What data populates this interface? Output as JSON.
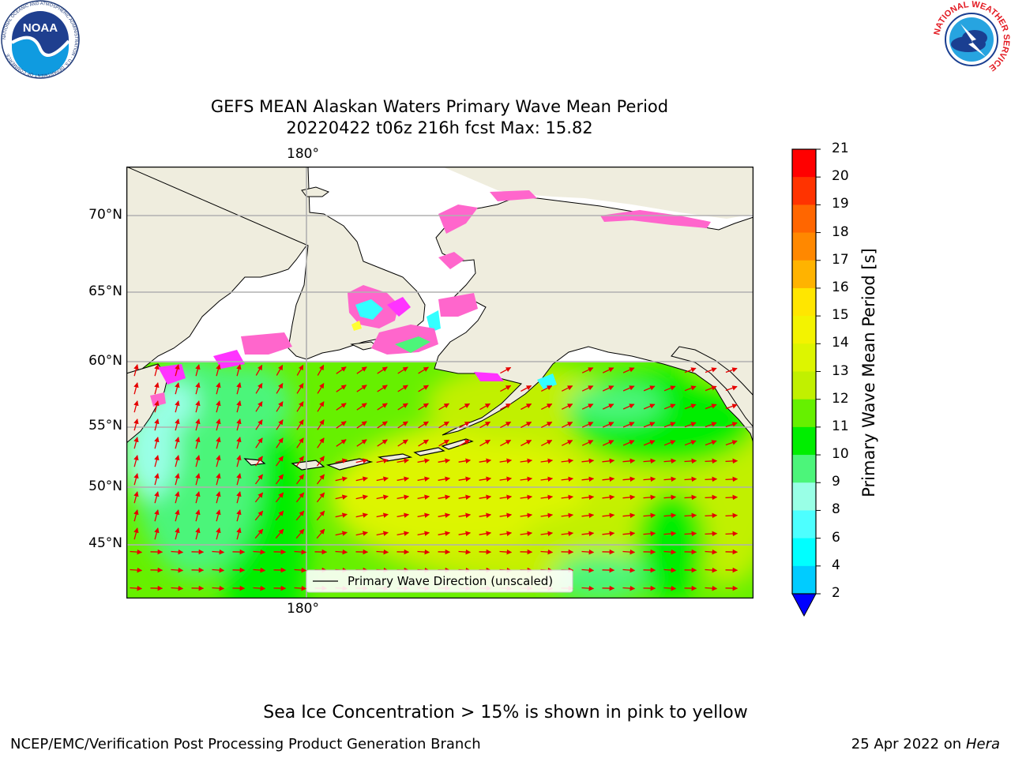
{
  "title": {
    "line1": "GEFS MEAN Alaskan Waters Primary Wave Mean Period",
    "line2": "20220422 t06z 216h fcst   Max: 15.82"
  },
  "map": {
    "lat_labels": [
      "70°N",
      "65°N",
      "60°N",
      "55°N",
      "50°N",
      "45°N"
    ],
    "lon_label_top": "180°",
    "lon_label_bottom": "180°",
    "legend_text": "Primary Wave Direction (unscaled)",
    "colors": {
      "land": "#efedde",
      "ice_pink": "#ff66cc",
      "ice_magenta": "#ff33ff",
      "ice_yellow": "#ffff33",
      "arrow": "#e60000",
      "grid": "#b0b0b0",
      "coast": "#000000"
    }
  },
  "colorbar": {
    "label": "Primary Wave Mean Period [s]",
    "ticks": [
      "21",
      "20",
      "19",
      "18",
      "17",
      "16",
      "15",
      "14",
      "13",
      "12",
      "11",
      "10",
      "9",
      "8",
      "6",
      "4",
      "2"
    ],
    "colors": [
      "#ff0000",
      "#ff3300",
      "#ff6600",
      "#ff8800",
      "#ffb300",
      "#ffe600",
      "#f3f300",
      "#ddf500",
      "#c1f000",
      "#66f000",
      "#00ee00",
      "#4cf57a",
      "#99ffe6",
      "#4dffff",
      "#00ffff",
      "#00ccff",
      "#0066ff",
      "#0000ff"
    ]
  },
  "footer": {
    "ice_note": "Sea Ice Concentration > 15% is shown in pink to yellow",
    "left": "NCEP/EMC/Verification Post Processing Product Generation Branch",
    "right_date": "25 Apr 2022 on ",
    "right_machine": "Hera"
  },
  "logos": {
    "noaa": "NOAA",
    "noaa_ring": "NATIONAL OCEANIC AND ATMOSPHERIC ADMINISTRATION · U.S. DEPARTMENT OF COMMERCE",
    "nws_ring": "NATIONAL WEATHER SERVICE"
  }
}
